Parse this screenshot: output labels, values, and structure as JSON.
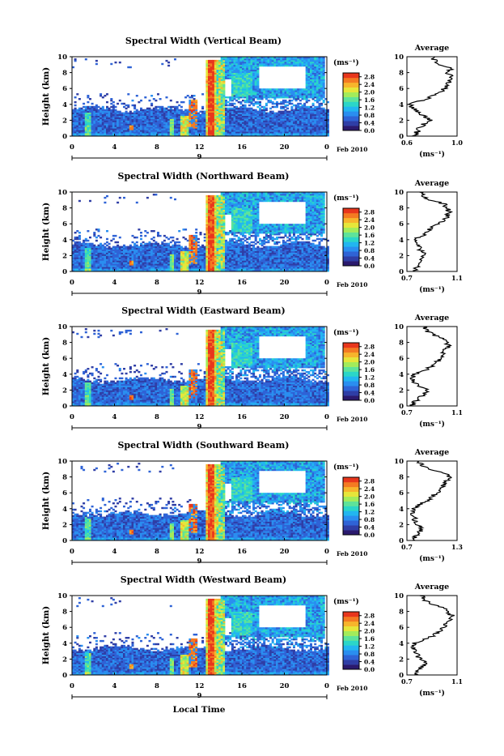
{
  "colors": {
    "cmap": [
      "#2b1a6e",
      "#2f3ea6",
      "#2f63d6",
      "#2a8ef0",
      "#22b6f0",
      "#2bd6c8",
      "#5ee39a",
      "#a3ec5a",
      "#e6e63a",
      "#f7b52c",
      "#f47a22",
      "#e8361c"
    ],
    "line": "#000000"
  },
  "shared": {
    "x_label": "Local Time",
    "x_ticks": [
      "0",
      "4",
      "8",
      "12",
      "16",
      "20",
      "0"
    ],
    "date_day": "9",
    "date_label": "Feb 2010",
    "y_label": "Height (km)",
    "y_ticks": [
      "0",
      "2",
      "4",
      "6",
      "8",
      "10"
    ],
    "unit": "(ms⁻¹)",
    "cbar_ticks": [
      "0.0",
      "0.4",
      "0.8",
      "1.2",
      "1.6",
      "2.0",
      "2.4",
      "2.8"
    ],
    "avg_title": "Average",
    "avg_unit": "(ms⁻¹)"
  },
  "chart_data": [
    {
      "type": "heatmap",
      "title": "Spectral Width (Vertical Beam)",
      "xlabel": "Local Time",
      "ylabel": "Height (km)",
      "xlim": [
        0,
        24
      ],
      "ylim": [
        0,
        10
      ],
      "clim": [
        0,
        3.0
      ],
      "colorbar_ticks": [
        0.0,
        0.4,
        0.8,
        1.2,
        1.6,
        2.0,
        2.4,
        2.8
      ],
      "average_profile": {
        "xlim": [
          0.6,
          1.0
        ],
        "x_ticks": [
          "0.6",
          "1.0"
        ],
        "height": [
          0,
          0.5,
          1,
          1.5,
          2,
          2.5,
          3,
          3.5,
          4,
          4.5,
          5,
          5.5,
          6,
          6.5,
          7,
          7.5,
          8,
          8.5,
          9,
          9.5,
          10
        ],
        "value": [
          0.66,
          0.68,
          0.7,
          0.73,
          0.78,
          0.74,
          0.7,
          0.65,
          0.62,
          0.72,
          0.8,
          0.86,
          0.9,
          0.92,
          0.94,
          0.96,
          0.92,
          0.95,
          0.85,
          0.82,
          0.8
        ]
      }
    },
    {
      "type": "heatmap",
      "title": "Spectral Width (Northward Beam)",
      "xlabel": "Local Time",
      "ylabel": "Height (km)",
      "xlim": [
        0,
        24
      ],
      "ylim": [
        0,
        10
      ],
      "clim": [
        0,
        3.0
      ],
      "colorbar_ticks": [
        0.0,
        0.4,
        0.8,
        1.2,
        1.6,
        2.0,
        2.4,
        2.8
      ],
      "average_profile": {
        "xlim": [
          0.7,
          1.1
        ],
        "x_ticks": [
          "0.7",
          "1.1"
        ],
        "height": [
          0,
          0.5,
          1,
          1.5,
          2,
          2.5,
          3,
          3.5,
          4,
          4.5,
          5,
          5.5,
          6,
          6.5,
          7,
          7.5,
          8,
          8.5,
          9,
          9.5,
          10
        ],
        "value": [
          0.76,
          0.78,
          0.8,
          0.82,
          0.84,
          0.82,
          0.8,
          0.78,
          0.76,
          0.82,
          0.86,
          0.9,
          0.96,
          1.0,
          1.02,
          1.04,
          1.02,
          1.0,
          0.88,
          0.84,
          0.82
        ]
      }
    },
    {
      "type": "heatmap",
      "title": "Spectral Width (Eastward Beam)",
      "xlabel": "Local Time",
      "ylabel": "Height (km)",
      "xlim": [
        0,
        24
      ],
      "ylim": [
        0,
        10
      ],
      "clim": [
        0,
        3.0
      ],
      "colorbar_ticks": [
        0.0,
        0.4,
        0.8,
        1.2,
        1.6,
        2.0,
        2.4,
        2.8
      ],
      "average_profile": {
        "xlim": [
          0.7,
          1.1
        ],
        "x_ticks": [
          "0.7",
          "1.1"
        ],
        "height": [
          0,
          0.5,
          1,
          1.5,
          2,
          2.5,
          3,
          3.5,
          4,
          4.5,
          5,
          5.5,
          6,
          6.5,
          7,
          7.5,
          8,
          8.5,
          9,
          9.5,
          10
        ],
        "value": [
          0.74,
          0.76,
          0.8,
          0.83,
          0.86,
          0.8,
          0.76,
          0.74,
          0.76,
          0.84,
          0.9,
          0.94,
          0.96,
          0.98,
          1.0,
          1.04,
          1.02,
          1.0,
          0.9,
          0.86,
          0.84
        ]
      }
    },
    {
      "type": "heatmap",
      "title": "Spectral Width (Southward Beam)",
      "xlabel": "Local Time",
      "ylabel": "Height (km)",
      "xlim": [
        0,
        24
      ],
      "ylim": [
        0,
        10
      ],
      "clim": [
        0,
        3.0
      ],
      "colorbar_ticks": [
        0.0,
        0.4,
        0.8,
        1.2,
        1.6,
        2.0,
        2.4,
        2.8
      ],
      "average_profile": {
        "xlim": [
          0.7,
          1.3
        ],
        "x_ticks": [
          "0.7",
          "1.3"
        ],
        "height": [
          0,
          0.5,
          1,
          1.5,
          2,
          2.5,
          3,
          3.5,
          4,
          4.5,
          5,
          5.5,
          6,
          6.5,
          7,
          7.5,
          8,
          8.5,
          9,
          9.5,
          10
        ],
        "value": [
          0.78,
          0.8,
          0.84,
          0.88,
          0.82,
          0.8,
          0.78,
          0.76,
          0.78,
          0.86,
          0.94,
          1.0,
          1.06,
          1.1,
          1.14,
          1.18,
          1.22,
          1.16,
          0.96,
          0.88,
          0.84
        ]
      }
    },
    {
      "type": "heatmap",
      "title": "Spectral Width (Westward Beam)",
      "xlabel": "Local Time",
      "ylabel": "Height (km)",
      "xlim": [
        0,
        24
      ],
      "ylim": [
        0,
        10
      ],
      "clim": [
        0,
        3.0
      ],
      "colorbar_ticks": [
        0.0,
        0.4,
        0.8,
        1.2,
        1.6,
        2.0,
        2.4,
        2.8
      ],
      "average_profile": {
        "xlim": [
          0.7,
          1.1
        ],
        "x_ticks": [
          "0.7",
          "1.1"
        ],
        "height": [
          0,
          0.5,
          1,
          1.5,
          2,
          2.5,
          3,
          3.5,
          4,
          4.5,
          5,
          5.5,
          6,
          6.5,
          7,
          7.5,
          8,
          8.5,
          9,
          9.5,
          10
        ],
        "value": [
          0.76,
          0.78,
          0.82,
          0.86,
          0.8,
          0.78,
          0.76,
          0.74,
          0.76,
          0.84,
          0.92,
          0.96,
          1.0,
          1.02,
          1.04,
          1.06,
          1.02,
          0.98,
          0.88,
          0.84,
          0.82
        ]
      }
    }
  ]
}
